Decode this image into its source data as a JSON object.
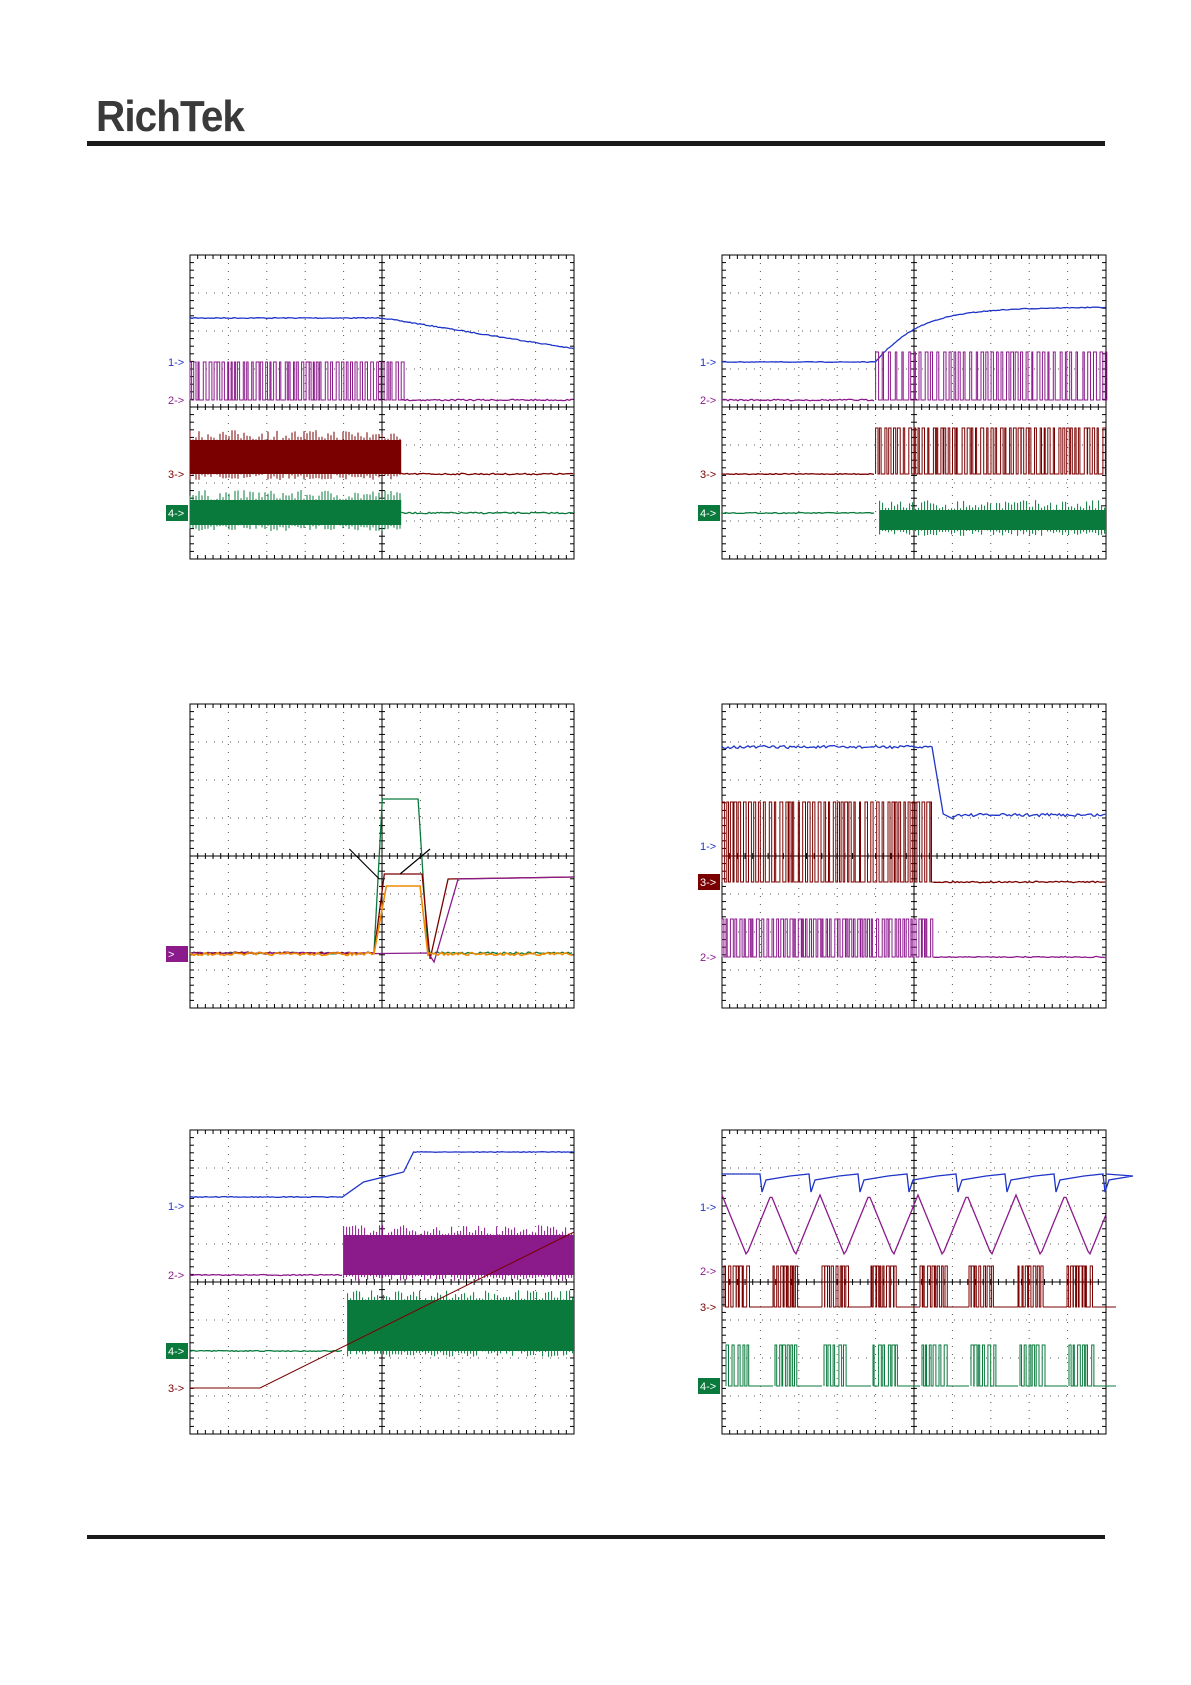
{
  "header": {
    "logo_text": "RichTek"
  },
  "colors": {
    "ch1": "#1f35c8",
    "ch2": "#8b1a8b",
    "ch3": "#7a0000",
    "ch4": "#0a7a3c",
    "orange": "#f08a00",
    "grid": "#000000"
  },
  "scopes": [
    {
      "id": "s1",
      "type": "line",
      "markers": [
        {
          "label": "1->",
          "color": "ch1",
          "boxed": false
        },
        {
          "label": "2->",
          "color": "ch2",
          "boxed": false
        },
        {
          "label": "3->",
          "color": "ch3",
          "boxed": false
        },
        {
          "label": "4->",
          "color": "ch4",
          "boxed": true
        }
      ]
    },
    {
      "id": "s2",
      "type": "line",
      "markers": [
        {
          "label": "1->",
          "color": "ch1",
          "boxed": false
        },
        {
          "label": "2->",
          "color": "ch2",
          "boxed": false
        },
        {
          "label": "3->",
          "color": "ch3",
          "boxed": false
        },
        {
          "label": "4->",
          "color": "ch4",
          "boxed": true
        }
      ]
    },
    {
      "id": "s3",
      "type": "line",
      "markers": [
        {
          "label": ">",
          "color": "ch2",
          "boxed": true
        }
      ]
    },
    {
      "id": "s4",
      "type": "line",
      "markers": [
        {
          "label": "1->",
          "color": "ch1",
          "boxed": false
        },
        {
          "label": "3->",
          "color": "ch3",
          "boxed": true
        },
        {
          "label": "2->",
          "color": "ch2",
          "boxed": false
        }
      ]
    },
    {
      "id": "s5",
      "type": "line",
      "markers": [
        {
          "label": "1->",
          "color": "ch1",
          "boxed": false
        },
        {
          "label": "2->",
          "color": "ch2",
          "boxed": false
        },
        {
          "label": "4->",
          "color": "ch4",
          "boxed": true
        },
        {
          "label": "3->",
          "color": "ch3",
          "boxed": false
        }
      ]
    },
    {
      "id": "s6",
      "type": "line",
      "markers": [
        {
          "label": "1->",
          "color": "ch1",
          "boxed": false
        },
        {
          "label": "2->",
          "color": "ch2",
          "boxed": false
        },
        {
          "label": "3->",
          "color": "ch3",
          "boxed": false
        },
        {
          "label": "4->",
          "color": "ch4",
          "boxed": true
        }
      ]
    }
  ]
}
